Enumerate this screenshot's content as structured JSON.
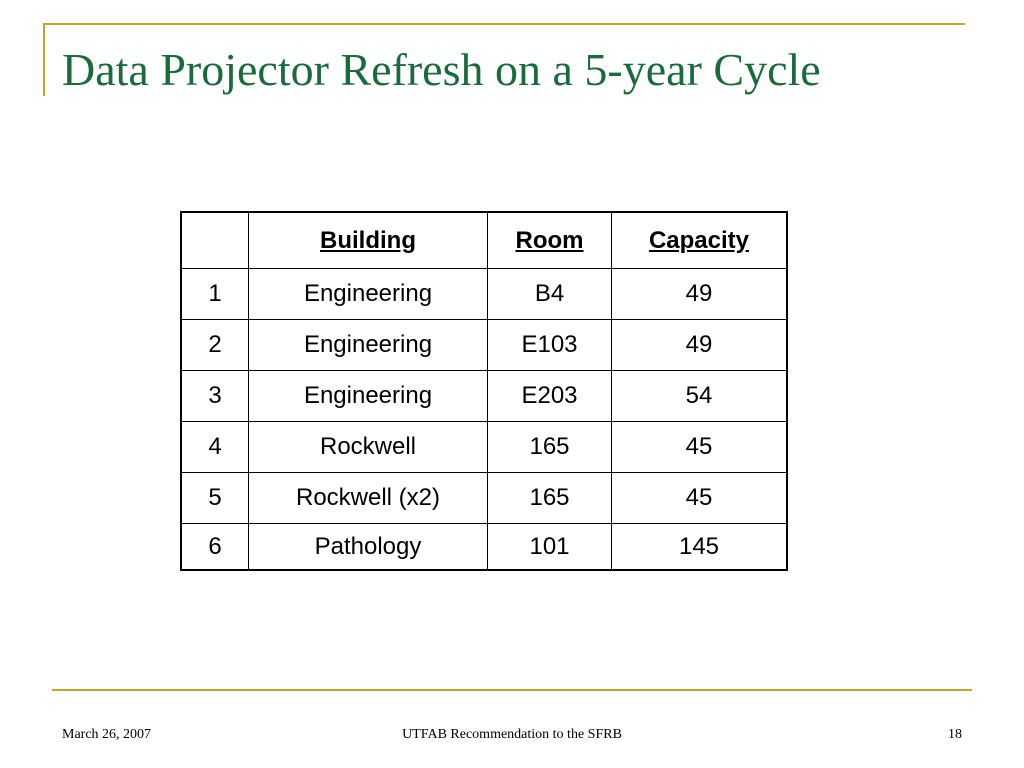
{
  "slide": {
    "title": "Data Projector Refresh on a 5-year Cycle",
    "accent_color": "#c9a227",
    "title_color": "#1a6b3a"
  },
  "table": {
    "headers": [
      "",
      "Building",
      "Room",
      "Capacity"
    ],
    "rows": [
      [
        "1",
        "Engineering",
        "B4",
        "49"
      ],
      [
        "2",
        "Engineering",
        "E103",
        "49"
      ],
      [
        "3",
        "Engineering",
        "E203",
        "54"
      ],
      [
        "4",
        "Rockwell",
        "165",
        "45"
      ],
      [
        "5",
        "Rockwell (x2)",
        "165",
        "45"
      ],
      [
        "6",
        "Pathology",
        "101",
        "145"
      ]
    ]
  },
  "footer": {
    "date": "March 26, 2007",
    "center": "UTFAB Recommendation to the SFRB",
    "page": "18"
  }
}
